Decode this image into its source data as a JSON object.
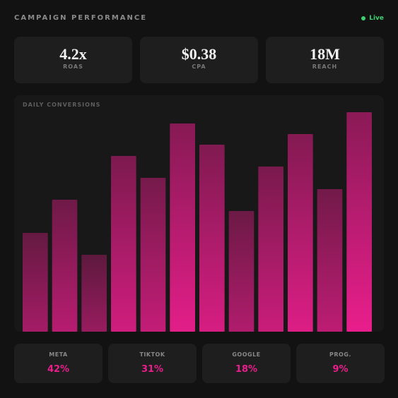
{
  "header": {
    "title": "CAMPAIGN PERFORMANCE",
    "status": "Live"
  },
  "kpis": [
    {
      "value": "4.2x",
      "label": "ROAS"
    },
    {
      "value": "$0.38",
      "label": "CPA"
    },
    {
      "value": "18M",
      "label": "REACH"
    }
  ],
  "chart_data": {
    "type": "bar",
    "title": "DAILY CONVERSIONS",
    "categories": [
      null,
      null,
      null,
      null,
      null,
      null,
      null,
      null,
      null,
      null,
      null,
      null
    ],
    "values": [
      140,
      187,
      109,
      249,
      218,
      295,
      265,
      171,
      234,
      280,
      202,
      311
    ],
    "color": "#e91e8c",
    "ylim": [
      0,
      311
    ],
    "grid": false
  },
  "channels": [
    {
      "label": "META",
      "value": "42%"
    },
    {
      "label": "TIKTOK",
      "value": "31%"
    },
    {
      "label": "GOOGLE",
      "value": "18%"
    },
    {
      "label": "PROG.",
      "value": "9%"
    }
  ]
}
